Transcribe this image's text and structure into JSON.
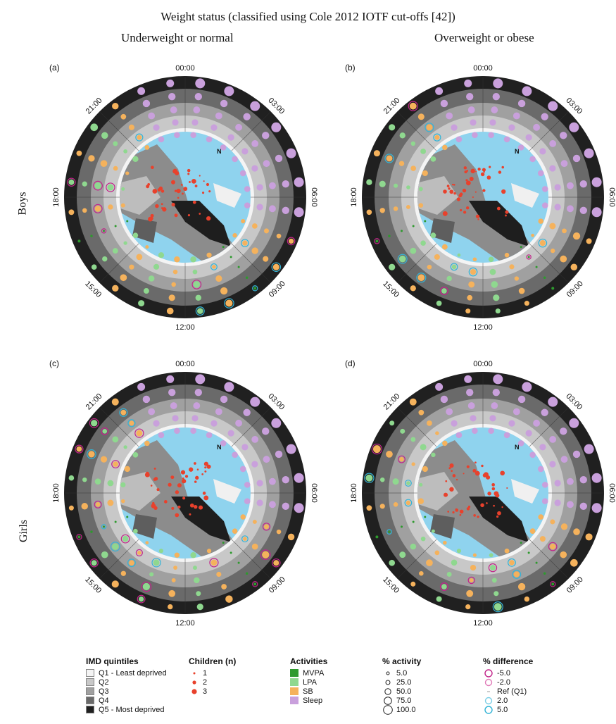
{
  "title": "Weight status (classified using Cole 2012 IOTF cut-offs [42])",
  "columns": [
    "Underweight or normal",
    "Overweight or obese"
  ],
  "rows": [
    "Boys",
    "Girls"
  ],
  "panels": [
    {
      "label": "(a)"
    },
    {
      "label": "(b)"
    },
    {
      "label": "(c)"
    },
    {
      "label": "(d)"
    }
  ],
  "time_labels": [
    "00:00",
    "03:00",
    "06:00",
    "09:00",
    "12:00",
    "15:00",
    "18:00",
    "21:00"
  ],
  "north_symbol": "N",
  "colors": {
    "q1": "#f4f4f4",
    "q2": "#c8c8c8",
    "q3": "#a0a0a0",
    "q4": "#6a6a6a",
    "q5": "#202020",
    "map_water": "#8fd3ee",
    "map_land": "#9a9a9a",
    "children": "#e8412c",
    "mvpa": "#2e9a2e",
    "lpa": "#8fd88f",
    "sb": "#f5b25c",
    "sleep": "#c9a0dc",
    "diff_neg": "#c2258a",
    "diff_pos": "#34b4d6"
  },
  "chart_data": {
    "type": "radial-bubble",
    "note_rings": [
      "Q1 - Least deprived",
      "Q2",
      "Q3",
      "Q4",
      "Q5 - Most deprived"
    ],
    "activity_by_hour_sequence": [
      "Sleep",
      "Sleep",
      "Sleep",
      "Sleep",
      "Sleep",
      "Sleep",
      "Sleep",
      "SB",
      "SB",
      "MVPA",
      "SB",
      "LPA",
      "SB",
      "LPA",
      "SB",
      "LPA",
      "MVPA",
      "SB",
      "LPA",
      "SB",
      "LPA",
      "SB",
      "Sleep",
      "Sleep"
    ]
  },
  "legend": {
    "imd": {
      "title": "IMD quintiles",
      "items": [
        "Q1 - Least deprived",
        "Q2",
        "Q3",
        "Q4",
        "Q5 - Most deprived"
      ]
    },
    "children": {
      "title": "Children (n)",
      "items": [
        "1",
        "2",
        "3"
      ]
    },
    "activities": {
      "title": "Activities",
      "items": [
        "MVPA",
        "LPA",
        "SB",
        "Sleep"
      ]
    },
    "pct_activity": {
      "title": "% activity",
      "items": [
        "5.0",
        "25.0",
        "50.0",
        "75.0",
        "100.0"
      ]
    },
    "pct_difference": {
      "title": "% difference",
      "items": [
        "-5.0",
        "-2.0",
        "Ref (Q1)",
        "2.0",
        "5.0"
      ]
    }
  }
}
